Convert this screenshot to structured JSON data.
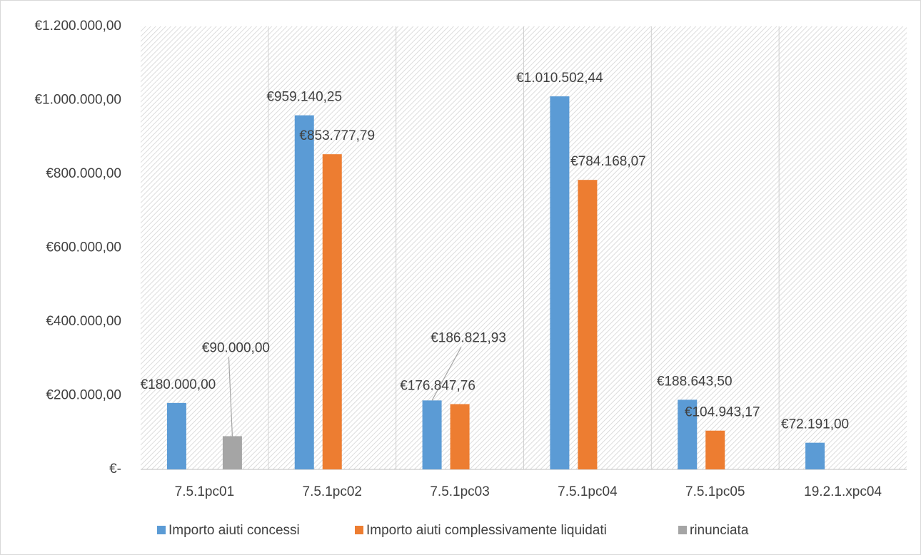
{
  "chart_data": {
    "type": "bar",
    "categories": [
      "7.5.1pc01",
      "7.5.1pc02",
      "7.5.1pc03",
      "7.5.1pc04",
      "7.5.1pc05",
      "19.2.1.xpc04"
    ],
    "series": [
      {
        "name": "Importo aiuti concessi",
        "color": "#5b9bd5",
        "values": [
          180000,
          959140.25,
          186821.93,
          1010502.44,
          188643.5,
          72191
        ],
        "value_labels": [
          "€180.000,00",
          "€959.140,25",
          "€186.821,93",
          "€1.010.502,44",
          "€188.643,50",
          "€72.191,00"
        ]
      },
      {
        "name": "Importo aiuti complessivamente liquidati",
        "color": "#ed7d31",
        "values": [
          null,
          853777.79,
          176847.76,
          784168.07,
          104943.17,
          null
        ],
        "value_labels": [
          null,
          "€853.777,79",
          "€176.847,76",
          "€784.168,07",
          "€104.943,17",
          null
        ]
      },
      {
        "name": "rinunciata",
        "color": "#a5a5a5",
        "values": [
          90000,
          null,
          null,
          null,
          null,
          null
        ],
        "value_labels": [
          "€90.000,00",
          null,
          null,
          null,
          null,
          null
        ]
      }
    ],
    "ylim": [
      0,
      1200000
    ],
    "yticks": [
      {
        "value": 0,
        "label": "€-"
      },
      {
        "value": 200000,
        "label": "€200.000,00"
      },
      {
        "value": 400000,
        "label": "€400.000,00"
      },
      {
        "value": 600000,
        "label": "€600.000,00"
      },
      {
        "value": 800000,
        "label": "€800.000,00"
      },
      {
        "value": 1000000,
        "label": "€1.000.000,00"
      },
      {
        "value": 1200000,
        "label": "€1.200.000,00"
      }
    ],
    "legend": "bottom"
  }
}
